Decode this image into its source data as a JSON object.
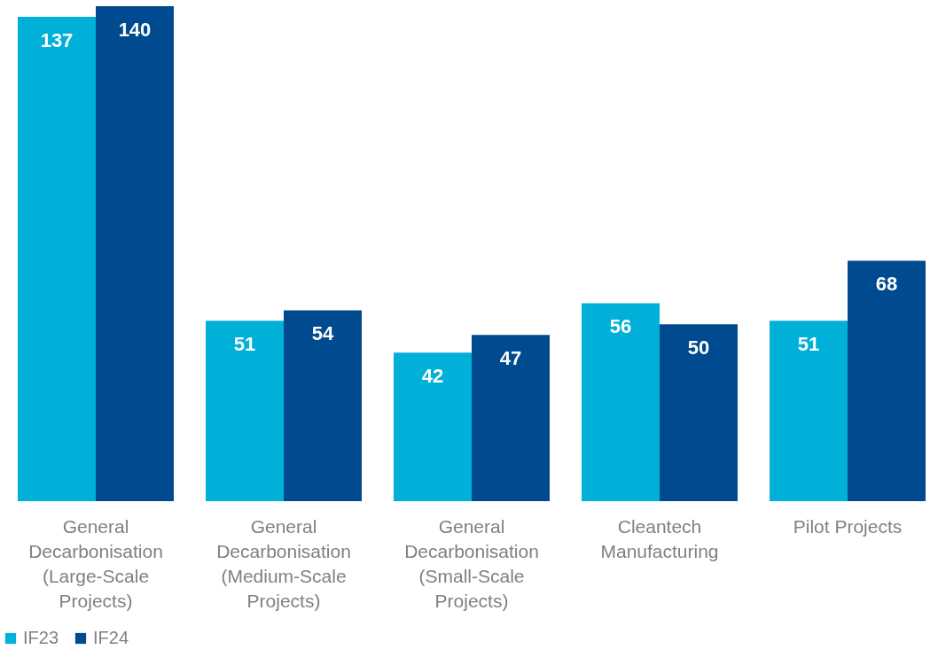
{
  "chart_data": {
    "type": "bar",
    "categories": [
      "General Decarbonisation (Large-Scale Projects)",
      "General Decarbonisation (Medium-Scale Projects)",
      "General Decarbonisation (Small-Scale Projects)",
      "Cleantech Manufacturing",
      "Pilot Projects"
    ],
    "series": [
      {
        "name": "IF23",
        "color": "#00b0d8",
        "values": [
          137,
          51,
          42,
          56,
          51
        ]
      },
      {
        "name": "IF24",
        "color": "#004a8f",
        "values": [
          140,
          54,
          47,
          50,
          68
        ]
      }
    ],
    "data_labels": true,
    "legend": "bottom",
    "grid": false
  }
}
